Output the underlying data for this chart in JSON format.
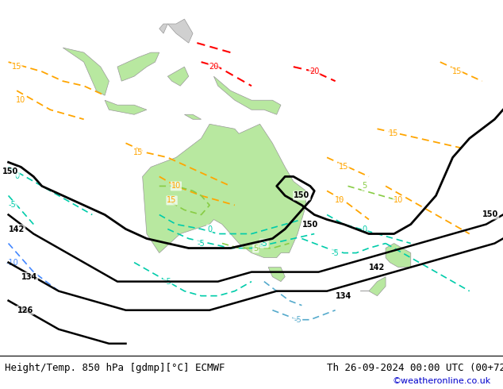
{
  "title_left": "Height/Temp. 850 hPa [gdmp][°C] ECMWF",
  "title_right": "Th 26-09-2024 00:00 UTC (00+72)",
  "credit": "©weatheronline.co.uk",
  "bg_color": "#e8e8e8",
  "land_color": "#d8d8d8",
  "australia_color": "#b8e8a0",
  "nz_color": "#b8e8a0",
  "indonesia_color": "#b8e8a0",
  "ocean_color": "#e8e8e8",
  "title_fontsize": 9,
  "credit_color": "#0000cc",
  "figsize": [
    6.34,
    4.9
  ],
  "dpi": 100
}
